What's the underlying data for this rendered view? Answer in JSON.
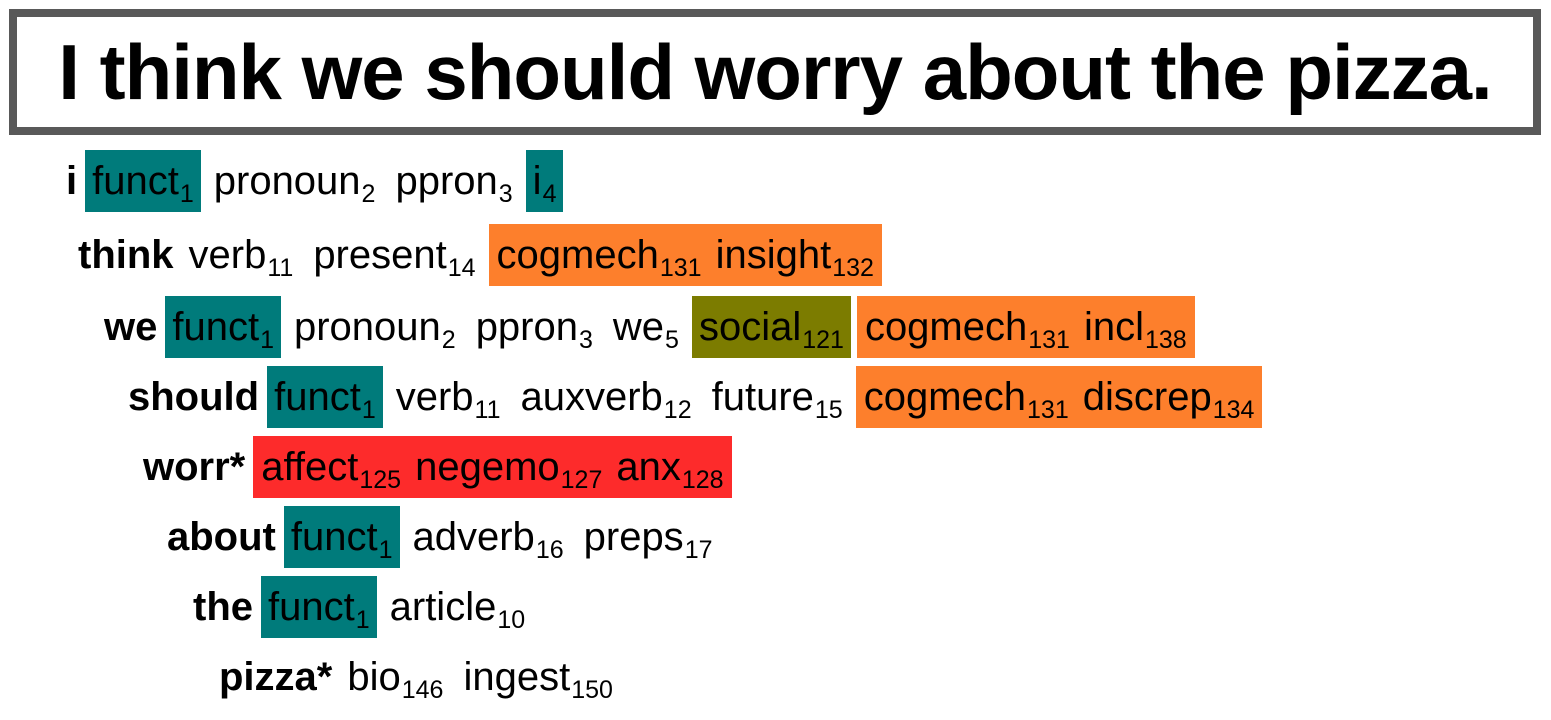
{
  "title": "I think we should worry about the pizza.",
  "colors": {
    "funct": "#007b7b",
    "cogmech": "#fd7f2c",
    "social": "#7c7c00",
    "affect": "#fd2b2b"
  },
  "rows": [
    {
      "word": "i",
      "tokens": [
        {
          "name": "funct",
          "sub": "1",
          "group": "funct"
        },
        {
          "name": "pronoun",
          "sub": "2"
        },
        {
          "name": "ppron",
          "sub": "3"
        },
        {
          "name": "i",
          "sub": "4",
          "group": "funct"
        }
      ]
    },
    {
      "word": "think",
      "tokens": [
        {
          "name": "verb",
          "sub": "11"
        },
        {
          "name": "present",
          "sub": "14"
        },
        {
          "name": "cogmech",
          "sub": "131",
          "group": "cogmech"
        },
        {
          "name": "insight",
          "sub": "132",
          "group": "cogmech"
        }
      ]
    },
    {
      "word": "we",
      "tokens": [
        {
          "name": "funct",
          "sub": "1",
          "group": "funct"
        },
        {
          "name": "pronoun",
          "sub": "2"
        },
        {
          "name": "ppron",
          "sub": "3"
        },
        {
          "name": "we",
          "sub": "5"
        },
        {
          "name": "social",
          "sub": "121",
          "group": "social"
        },
        {
          "name": "cogmech",
          "sub": "131",
          "group": "cogmech"
        },
        {
          "name": "incl",
          "sub": "138",
          "group": "cogmech"
        }
      ]
    },
    {
      "word": "should",
      "tokens": [
        {
          "name": "funct",
          "sub": "1",
          "group": "funct"
        },
        {
          "name": "verb",
          "sub": "11"
        },
        {
          "name": "auxverb",
          "sub": "12"
        },
        {
          "name": "future",
          "sub": "15"
        },
        {
          "name": "cogmech",
          "sub": "131",
          "group": "cogmech"
        },
        {
          "name": "discrep",
          "sub": "134",
          "group": "cogmech"
        }
      ]
    },
    {
      "word": "worr*",
      "tokens": [
        {
          "name": "affect",
          "sub": "125",
          "group": "affect"
        },
        {
          "name": "negemo",
          "sub": "127",
          "group": "affect"
        },
        {
          "name": "anx",
          "sub": "128",
          "group": "affect"
        }
      ]
    },
    {
      "word": "about",
      "tokens": [
        {
          "name": "funct",
          "sub": "1",
          "group": "funct"
        },
        {
          "name": "adverb",
          "sub": "16"
        },
        {
          "name": "preps",
          "sub": "17"
        }
      ]
    },
    {
      "word": "the",
      "tokens": [
        {
          "name": "funct",
          "sub": "1",
          "group": "funct"
        },
        {
          "name": "article",
          "sub": "10"
        }
      ]
    },
    {
      "word": "pizza*",
      "tokens": [
        {
          "name": "bio",
          "sub": "146"
        },
        {
          "name": "ingest",
          "sub": "150"
        }
      ]
    }
  ]
}
